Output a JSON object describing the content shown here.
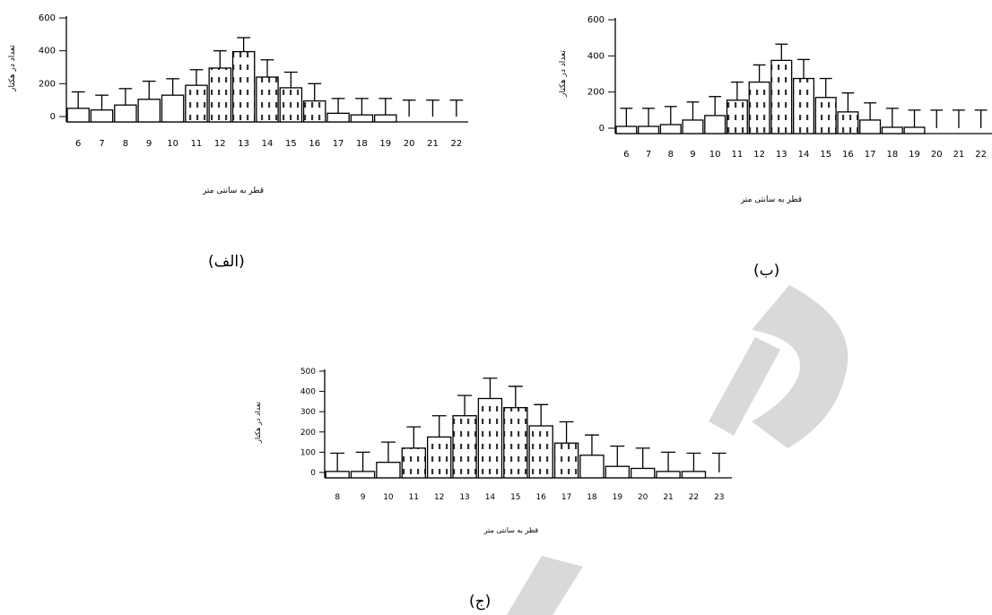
{
  "watermark": {
    "text": "D",
    "color": "#d9d9d9"
  },
  "chart_data": [
    {
      "type": "bar",
      "caption": "(الف)",
      "ylabel": "تعداد در هکتار",
      "xlabel": "قطر به سانتی متر",
      "ylim": [
        0,
        600
      ],
      "yticks": [
        0,
        200,
        400,
        600
      ],
      "categories": [
        "6",
        "7",
        "8",
        "9",
        "10",
        "11",
        "12",
        "13",
        "14",
        "15",
        "16",
        "17",
        "18",
        "19",
        "20",
        "21",
        "22"
      ],
      "values": [
        50,
        40,
        70,
        105,
        130,
        190,
        295,
        395,
        240,
        175,
        95,
        20,
        10,
        10,
        0,
        0,
        0
      ],
      "errors": [
        100,
        90,
        100,
        110,
        100,
        95,
        105,
        85,
        105,
        95,
        105,
        90,
        100,
        100,
        100,
        100,
        100
      ],
      "dotted_from": 11,
      "dotted_to": 16
    },
    {
      "type": "bar",
      "caption": "(ب)",
      "ylabel": "تعداد در هکتار",
      "xlabel": "قطر به سانتی متر",
      "ylim": [
        0,
        600
      ],
      "yticks": [
        0,
        200,
        400,
        600
      ],
      "categories": [
        "6",
        "7",
        "8",
        "9",
        "10",
        "11",
        "12",
        "13",
        "14",
        "15",
        "16",
        "17",
        "18",
        "19",
        "20",
        "21",
        "22"
      ],
      "values": [
        10,
        10,
        20,
        45,
        70,
        155,
        255,
        375,
        275,
        170,
        90,
        45,
        5,
        5,
        0,
        0,
        0
      ],
      "errors": [
        100,
        100,
        100,
        100,
        105,
        100,
        95,
        90,
        105,
        105,
        105,
        95,
        105,
        95,
        100,
        100,
        100
      ],
      "dotted_from": 11,
      "dotted_to": 16
    },
    {
      "type": "bar",
      "caption": "(ج)",
      "ylabel": "تعداد در هکتار",
      "xlabel": "قطر به سانتی متر",
      "ylim": [
        0,
        500
      ],
      "yticks": [
        0,
        100,
        200,
        300,
        400,
        500
      ],
      "categories": [
        "8",
        "9",
        "10",
        "11",
        "12",
        "13",
        "14",
        "15",
        "16",
        "17",
        "18",
        "19",
        "20",
        "21",
        "22",
        "23"
      ],
      "values": [
        5,
        5,
        50,
        120,
        175,
        280,
        365,
        320,
        230,
        145,
        85,
        30,
        20,
        5,
        5,
        0
      ],
      "errors": [
        90,
        95,
        100,
        105,
        105,
        100,
        100,
        105,
        105,
        105,
        100,
        100,
        100,
        95,
        90,
        95
      ],
      "dotted_from": 11,
      "dotted_to": 17
    }
  ]
}
